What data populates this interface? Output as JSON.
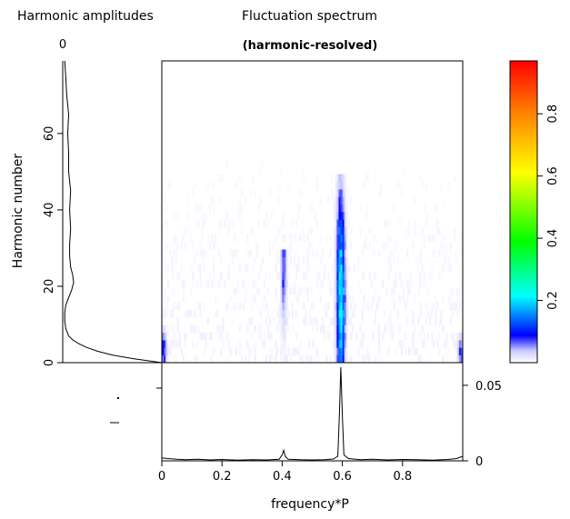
{
  "chart_data": [
    {
      "id": "amplitudes",
      "type": "line",
      "title": "Harmonic amplitudes",
      "top_label": "0",
      "ylabel": "Harmonic number",
      "ylim": [
        0,
        79
      ],
      "xlim": [
        0,
        1
      ],
      "yticks": [
        0,
        20,
        40,
        60
      ],
      "curve": [
        {
          "h": 0,
          "a": 1.0
        },
        {
          "h": 1,
          "a": 0.72
        },
        {
          "h": 2,
          "a": 0.5
        },
        {
          "h": 3,
          "a": 0.35
        },
        {
          "h": 4,
          "a": 0.24
        },
        {
          "h": 5,
          "a": 0.16
        },
        {
          "h": 6,
          "a": 0.1
        },
        {
          "h": 7,
          "a": 0.06
        },
        {
          "h": 9,
          "a": 0.03
        },
        {
          "h": 11,
          "a": 0.02
        },
        {
          "h": 13,
          "a": 0.02
        },
        {
          "h": 15,
          "a": 0.03
        },
        {
          "h": 17,
          "a": 0.06
        },
        {
          "h": 19,
          "a": 0.09
        },
        {
          "h": 21,
          "a": 0.11
        },
        {
          "h": 23,
          "a": 0.1
        },
        {
          "h": 25,
          "a": 0.08
        },
        {
          "h": 28,
          "a": 0.07
        },
        {
          "h": 31,
          "a": 0.07
        },
        {
          "h": 35,
          "a": 0.08
        },
        {
          "h": 40,
          "a": 0.07
        },
        {
          "h": 45,
          "a": 0.08
        },
        {
          "h": 50,
          "a": 0.06
        },
        {
          "h": 55,
          "a": 0.06
        },
        {
          "h": 60,
          "a": 0.05
        },
        {
          "h": 65,
          "a": 0.06
        },
        {
          "h": 70,
          "a": 0.04
        },
        {
          "h": 75,
          "a": 0.03
        },
        {
          "h": 79,
          "a": 0.02
        }
      ]
    },
    {
      "id": "spectrum",
      "type": "heatmap",
      "title": "Fluctuation spectrum",
      "subtitle": "(harmonic-resolved)",
      "xlim": [
        0,
        1
      ],
      "ylim": [
        0,
        79
      ],
      "features": [
        {
          "freq": 0.595,
          "width": 0.012,
          "h_max": 50,
          "peak": 0.3,
          "h_peak": 18
        },
        {
          "freq": 0.405,
          "width": 0.008,
          "h_max": 30,
          "peak": 0.1,
          "h_peak": 25
        },
        {
          "freq": 0.005,
          "width": 0.01,
          "h_max": 10,
          "peak": 0.12,
          "h_peak": 3
        },
        {
          "freq": 0.995,
          "width": 0.01,
          "h_max": 8,
          "peak": 0.1,
          "h_peak": 3
        }
      ]
    },
    {
      "id": "colorbar",
      "type": "heatmap",
      "range": [
        0,
        0.97
      ],
      "ticks": [
        "0.2",
        "0.4",
        "0.6",
        "0.8"
      ],
      "tick_values": [
        0.2,
        0.4,
        0.6,
        0.8
      ]
    },
    {
      "id": "integrated",
      "type": "line",
      "xlabel": "frequency*P",
      "xlim": [
        0,
        1
      ],
      "ylim": [
        0,
        0.065
      ],
      "xticks": [
        "0",
        "0.2",
        "0.4",
        "0.6",
        "0.8"
      ],
      "xtick_values": [
        0,
        0.2,
        0.4,
        0.6,
        0.8
      ],
      "yticks": [
        "0",
        "0.05"
      ],
      "ytick_values": [
        0,
        0.05
      ],
      "points": [
        {
          "f": 0.0,
          "v": 0.002
        },
        {
          "f": 0.02,
          "v": 0.0015
        },
        {
          "f": 0.05,
          "v": 0.001
        },
        {
          "f": 0.08,
          "v": 0.0007
        },
        {
          "f": 0.12,
          "v": 0.001
        },
        {
          "f": 0.16,
          "v": 0.0006
        },
        {
          "f": 0.2,
          "v": 0.0009
        },
        {
          "f": 0.25,
          "v": 0.0005
        },
        {
          "f": 0.3,
          "v": 0.0008
        },
        {
          "f": 0.35,
          "v": 0.0006
        },
        {
          "f": 0.39,
          "v": 0.001
        },
        {
          "f": 0.4,
          "v": 0.004
        },
        {
          "f": 0.405,
          "v": 0.007
        },
        {
          "f": 0.41,
          "v": 0.003
        },
        {
          "f": 0.42,
          "v": 0.001
        },
        {
          "f": 0.46,
          "v": 0.0007
        },
        {
          "f": 0.5,
          "v": 0.0006
        },
        {
          "f": 0.54,
          "v": 0.0008
        },
        {
          "f": 0.57,
          "v": 0.0012
        },
        {
          "f": 0.585,
          "v": 0.003
        },
        {
          "f": 0.59,
          "v": 0.03
        },
        {
          "f": 0.595,
          "v": 0.062
        },
        {
          "f": 0.6,
          "v": 0.03
        },
        {
          "f": 0.605,
          "v": 0.004
        },
        {
          "f": 0.62,
          "v": 0.0015
        },
        {
          "f": 0.66,
          "v": 0.0008
        },
        {
          "f": 0.7,
          "v": 0.001
        },
        {
          "f": 0.75,
          "v": 0.0006
        },
        {
          "f": 0.8,
          "v": 0.0009
        },
        {
          "f": 0.85,
          "v": 0.0007
        },
        {
          "f": 0.9,
          "v": 0.0005
        },
        {
          "f": 0.95,
          "v": 0.0009
        },
        {
          "f": 0.98,
          "v": 0.0015
        },
        {
          "f": 1.0,
          "v": 0.003
        }
      ]
    }
  ]
}
